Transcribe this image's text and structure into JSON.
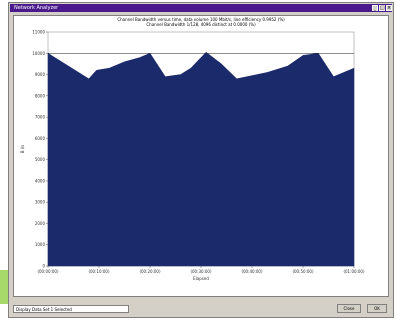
{
  "window": {
    "title": "Network Analyzer",
    "min_glyph": "_",
    "max_glyph": "□",
    "close_glyph": "×"
  },
  "chart_title": {
    "line1": "Channel Bandwidth versus time, data volume 100 Mbit/s, line efficiency 0.9952 (%)",
    "line2": "Channel Bandwidth 1/128, 4096 distinct at 0.0000 (%)"
  },
  "statusbar": {
    "combo_value": "Display Data Set 1 Selected",
    "button1_label": "Close",
    "button2_label": "OK"
  },
  "chart_data": {
    "type": "area",
    "xlabel": "Elapsed",
    "ylabel": "B i/s",
    "ylim": [
      0,
      11000
    ],
    "yticks": [
      "0",
      "1000",
      "2000",
      "3000",
      "4000",
      "5000",
      "6000",
      "7000",
      "8000",
      "9000",
      "10000",
      "11000"
    ],
    "xticks": [
      "(00:00:00)",
      "(00:10:00)",
      "(00:20:00)",
      "(00:30:00)",
      "(00:40:00)",
      "(00:50:00)",
      "(01:00:00)"
    ],
    "xlim": [
      0,
      60
    ],
    "reference_line": 10000,
    "fill_color": "#1b2a6b",
    "series": [
      {
        "x": [
          0,
          4,
          8,
          9.5,
          12,
          15,
          18,
          20,
          23,
          26,
          28,
          31,
          34,
          37,
          40,
          43,
          47,
          50,
          53,
          56,
          58,
          60
        ],
        "values": [
          10000,
          9400,
          8800,
          9200,
          9300,
          9600,
          9800,
          10000,
          8900,
          9000,
          9300,
          10050,
          9500,
          8800,
          8950,
          9100,
          9400,
          9900,
          10000,
          8900,
          9100,
          9300
        ]
      }
    ]
  }
}
